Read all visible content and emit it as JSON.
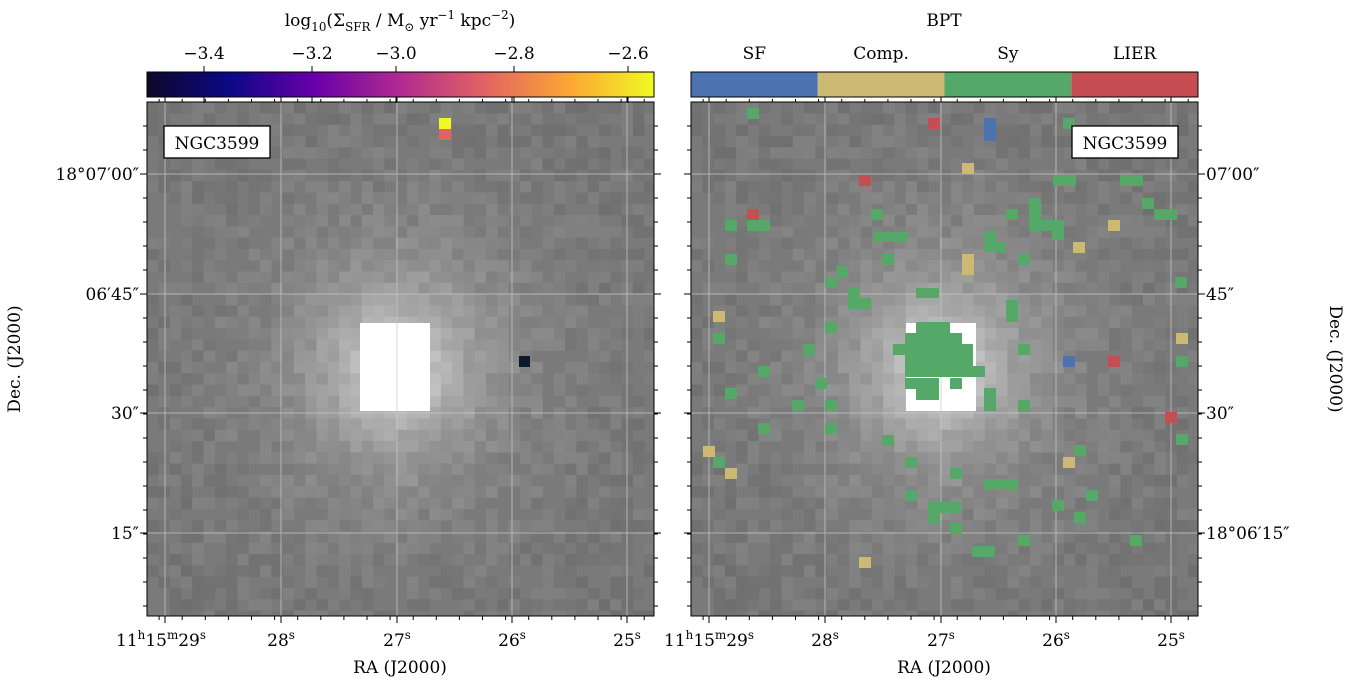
{
  "left_panel": {
    "object_label": "NGC3599",
    "colorbar": {
      "title": "log<sub>10</sub>(Σ<sub>SFR</sub> / M<sub>⊙</sub> yr<sup>−1</sup> kpc<sup>−2</sup>)",
      "ticks": [
        "−3.4",
        "−3.2",
        "−3.0",
        "−2.8",
        "−2.6"
      ],
      "colormap": [
        "#0d0887",
        "#6a00a8",
        "#b12a90",
        "#e16462",
        "#fca636",
        "#f0f921"
      ]
    },
    "ylabel": "Dec. (J2000)",
    "yticks": [
      "18°07′00″",
      "06′45″",
      "30″",
      "15″"
    ]
  },
  "right_panel": {
    "object_label": "NGC3599",
    "colorbar": {
      "title": "BPT",
      "categories": [
        {
          "label": "SF",
          "color": "#4c72b0"
        },
        {
          "label": "Comp.",
          "color": "#ccb974"
        },
        {
          "label": "Sy",
          "color": "#55a868"
        },
        {
          "label": "LIER",
          "color": "#c44e52"
        }
      ]
    },
    "ylabel": "Dec. (J2000)",
    "yticks": [
      "07′00″",
      "45″",
      "30″",
      "18°06′15″"
    ]
  },
  "xaxis": {
    "label": "RA (J2000)",
    "ticks": [
      "11<sup>h</sup>15<sup>m</sup>29<sup>s</sup>",
      "28<sup>s</sup>",
      "27<sup>s</sup>",
      "26<sup>s</sup>",
      "25<sup>s</sup>"
    ]
  }
}
